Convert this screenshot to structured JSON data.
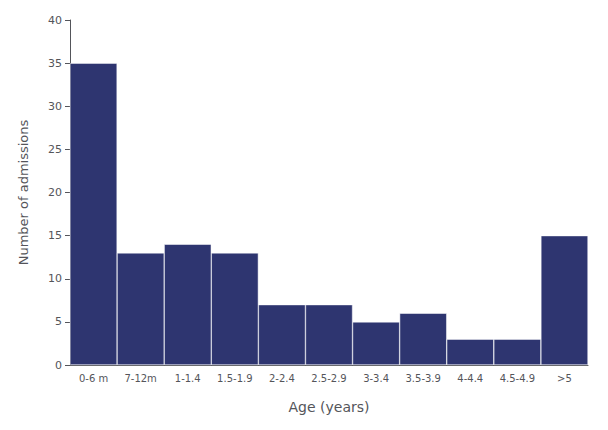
{
  "chart_data": {
    "type": "bar",
    "xlabel": "Age (years)",
    "ylabel": "Number of admissions",
    "categories": [
      "0-6 m",
      "7-12m",
      "1-1.4",
      "1.5-1.9",
      "2-2.4",
      "2.5-2.9",
      "3-3.4",
      "3.5-3.9",
      "4-4.4",
      "4.5-4.9",
      ">5"
    ],
    "values": [
      35,
      13,
      14,
      13,
      7,
      7,
      5,
      6,
      3,
      3,
      15
    ],
    "color": "#2E3570",
    "ylim": [
      0,
      40
    ],
    "yticks": [
      0,
      5,
      10,
      15,
      20,
      25,
      30,
      35,
      40
    ],
    "grid": false
  }
}
